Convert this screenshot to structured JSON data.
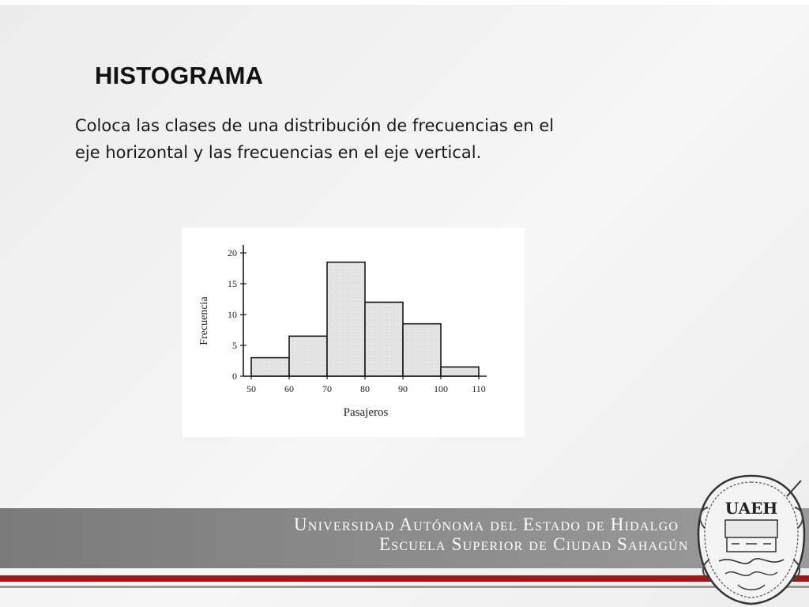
{
  "slide": {
    "title": "HISTOGRAMA",
    "body_line1": "Coloca las clases de una distribución de frecuencias en el",
    "body_line2": "eje horizontal y las frecuencias en el eje vertical."
  },
  "footer": {
    "line1": "Universidad Autónoma del Estado de Hidalgo",
    "line2": "Escuela Superior de Ciudad Sahagún",
    "logo_text": "UAEH"
  },
  "colors": {
    "accent_red": "#a31515",
    "footer_gray": "#8a8a8a",
    "bar_fill": "#e4e4e4"
  },
  "chart_data": {
    "type": "bar",
    "title": "",
    "xlabel": "Pasajeros",
    "ylabel": "Frecuencia",
    "bin_edges": [
      50,
      60,
      70,
      80,
      90,
      100,
      110
    ],
    "values": [
      3,
      6.5,
      18.5,
      12,
      8.5,
      1.5
    ],
    "xticks": [
      50,
      60,
      70,
      80,
      90,
      100,
      110
    ],
    "yticks": [
      0,
      5,
      10,
      15,
      20
    ],
    "xlim": [
      50,
      110
    ],
    "ylim": [
      0,
      20
    ],
    "grid": false,
    "legend": "none"
  }
}
